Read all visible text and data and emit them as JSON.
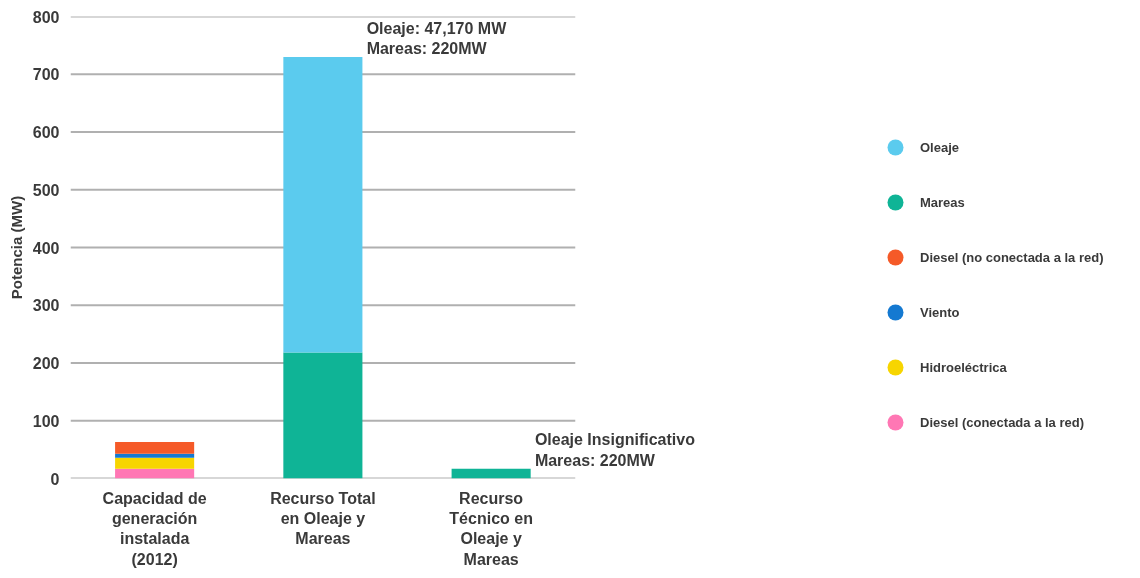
{
  "chart_data": {
    "type": "bar",
    "stacked": true,
    "ylabel": "Potencia (MW)",
    "categories": [
      "Capacidad de generación instalada (2012)",
      "Recurso Total en Oleaje y Mareas",
      "Recurso Técnico en Oleaje y Mareas"
    ],
    "series": [
      {
        "name": "Diesel (conectada a la red)",
        "color": "#ff77b4",
        "values": [
          17,
          null,
          null
        ]
      },
      {
        "name": "Hidroeléctrica",
        "color": "#f7d500",
        "values": [
          19,
          null,
          null
        ]
      },
      {
        "name": "Viento",
        "color": "#1479d1",
        "values": [
          7,
          null,
          null
        ]
      },
      {
        "name": "Diesel (no conectada a la red)",
        "color": "#f55a28",
        "values": [
          20,
          null,
          null
        ]
      },
      {
        "name": "Mareas",
        "color": "#0fb496",
        "values": [
          null,
          218,
          17
        ]
      },
      {
        "name": "Oleaje",
        "color": "#5bcbee",
        "values": [
          null,
          512,
          null
        ]
      }
    ],
    "ylim": [
      0,
      800
    ],
    "yticks": [
      0,
      100,
      200,
      300,
      400,
      500,
      600,
      700,
      800
    ],
    "grid": "y",
    "legend": "right",
    "annotations": [
      {
        "text": "Oleaje: 47,170 MW\nMareas: 220MW",
        "x": "Recurso Total en Oleaje y Mareas",
        "y": 730
      },
      {
        "text": "Oleaje Insignificativo\nMareas: 220MW",
        "x": "Recurso Técnico en Oleaje y Mareas",
        "y": 17
      }
    ]
  }
}
